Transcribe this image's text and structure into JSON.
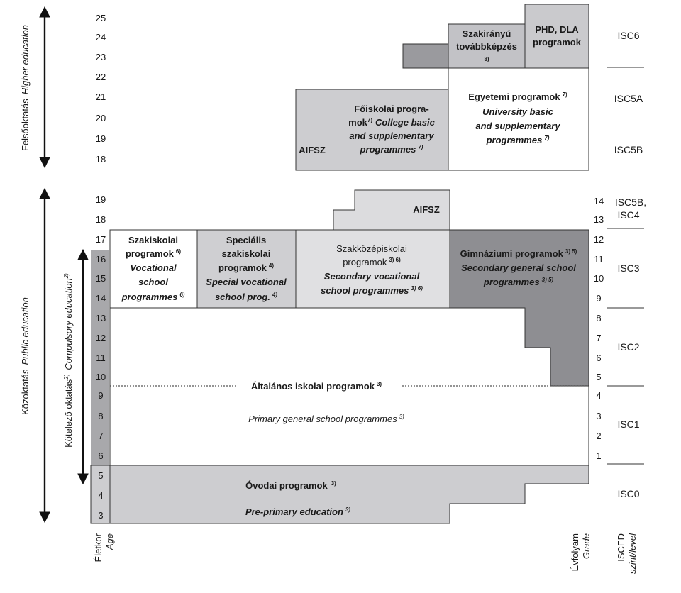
{
  "age_axis": {
    "higher": [
      "25",
      "24",
      "23",
      "22",
      "21",
      "20",
      "19",
      "18"
    ],
    "public": [
      "19",
      "18",
      "17",
      "16",
      "15",
      "14",
      "13",
      "12",
      "11",
      "10",
      "9",
      "8",
      "7",
      "6",
      "5",
      "4",
      "3"
    ],
    "label": "Életkor",
    "label_en": "Age"
  },
  "grade_axis": {
    "values": [
      "14",
      "13",
      "12",
      "11",
      "10",
      "9",
      "8",
      "7",
      "6",
      "5",
      "4",
      "3",
      "2",
      "1"
    ],
    "label": "Évfolyam",
    "label_en": "Grade"
  },
  "isced": {
    "levels": [
      "ISC6",
      "ISC5A",
      "ISC5B",
      "ISC5B,",
      "ISC4",
      "ISC3",
      "ISC2",
      "ISC1",
      "ISC0"
    ],
    "label": "ISCED",
    "label_en": "szint/level"
  },
  "side_labels": {
    "higher_hu": "Felsőoktatás",
    "higher_en": "Higher education",
    "public_hu": "Közoktatás",
    "public_en": "Public education",
    "compulsory_hu": "Kötelező oktatás",
    "compulsory_en": "Compulsory education",
    "note_2": "2)"
  },
  "blocks": {
    "aifsz_higher": "AIFSZ",
    "foiskolai": {
      "l1": "Főiskolai progra-",
      "l2a": "mok",
      "note_a": "7)",
      "l2b": "College basic",
      "l3": "and supplementary",
      "l4": "programmes",
      "note_b": "7)"
    },
    "egyetemi": {
      "l1": "Egyetemi programok",
      "note_a": "7)",
      "l2": "University basic",
      "l3": "and supplementary",
      "l4": "programmes",
      "note_b": "7)"
    },
    "szakiranyu": {
      "l1": "Szakirányú",
      "l2": "továbbképzés",
      "note": "8)"
    },
    "phd": {
      "l1": "PHD, DLA",
      "l2": "programok"
    },
    "aifsz_public": "AIFSZ",
    "szakiskolai": {
      "l1": "Szakiskolai",
      "l2": "programok",
      "note_a": "6)",
      "l3": "Vocational",
      "l4": "school",
      "l5": "programmes",
      "note_b": "6)"
    },
    "specialis": {
      "l1": "Speciális",
      "l2": "szakiskolai",
      "l3": "programok",
      "note_a": "4)",
      "l4": "Special vocational",
      "l5": "school prog.",
      "note_b": "4)"
    },
    "szakkozep": {
      "l1": "Szakközépiskolai",
      "l2": "programok",
      "note_a": "3) 6)",
      "l3": "Secondary vocational",
      "l4": "school programmes",
      "note_b": "3) 6)"
    },
    "gimnazium": {
      "l1": "Gimnáziumi programok",
      "note_a": "3) 5)",
      "l2": "Secondary general school",
      "l3": "programmes",
      "note_b": "3) 5)"
    },
    "altalanos": {
      "hu": "Általános iskolai programok",
      "note_a": "3)",
      "en": "Primary general school programmes",
      "note_b": "3)"
    },
    "ovodai": {
      "hu": "Óvodai programok",
      "note_a": "3)",
      "en": "Pre-primary education",
      "note_b": "3)"
    }
  },
  "colors": {
    "light_gray": "#c9c9cc",
    "mid_gray": "#a9a9ac",
    "dark_gray": "#8a8a8e",
    "box_gray": "#d4d4d6",
    "lighter_gray": "#dcdcde",
    "border": "#333333"
  }
}
